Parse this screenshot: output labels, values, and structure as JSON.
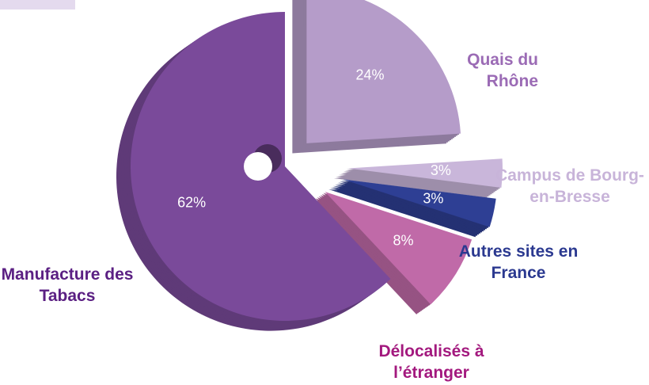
{
  "chart_data": {
    "type": "pie",
    "categories": [
      "Quais du Rhône",
      "Campus de Bourg-en-Bresse",
      "Autres sites en France",
      "Délocalisés à l’étranger",
      "Manufacture des Tabacs"
    ],
    "values": [
      24,
      3,
      3,
      8,
      62
    ],
    "value_labels": [
      "24%",
      "3%",
      "3%",
      "8%",
      "62%"
    ],
    "colors": [
      "#b59cc9",
      "#c9b6da",
      "#2e3f94",
      "#c06aa8",
      "#7a4a9a"
    ],
    "label_colors": [
      "#9b6bb5",
      "#c8b4d9",
      "#2b3990",
      "#a3197e",
      "#5b2083"
    ]
  }
}
